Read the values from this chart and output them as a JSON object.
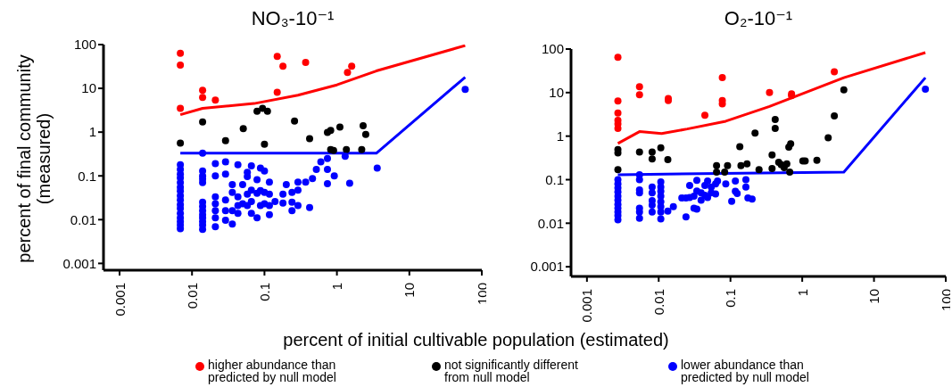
{
  "chart_data": [
    {
      "type": "scatter",
      "title": "NO₃-10⁻¹",
      "xlabel": "percent of initial cultivable population (estimated)",
      "ylabel": "percent  of final community (measured)",
      "log": "xy",
      "legend": "bottom",
      "xlim": [
        0.0006,
        100
      ],
      "ylim": [
        0.0007,
        100
      ],
      "xticks": [
        0.001,
        0.01,
        0.1,
        1,
        10,
        100
      ],
      "yticks": [
        0.001,
        0.01,
        0.1,
        1,
        10,
        100
      ],
      "series": [
        {
          "type": "line",
          "color": "#ff0000",
          "line_style": "solid",
          "x": [
            0.0069,
            0.014,
            0.072,
            0.29,
            1.0,
            3.5,
            59
          ],
          "values": [
            2.5,
            3.5,
            4.5,
            7,
            12,
            25,
            95
          ]
        },
        {
          "type": "line",
          "color": "#0000ff",
          "line_style": "solid",
          "x": [
            0.0069,
            3.5,
            59
          ],
          "values": [
            0.33,
            0.33,
            18
          ]
        },
        {
          "name": "higher abundance than predicted by null model",
          "marker": "circle",
          "color": "#ff0000",
          "x": [
            0.0069,
            0.0069,
            0.0069,
            0.014,
            0.014,
            0.021,
            0.15,
            0.18,
            0.15,
            0.37,
            1.4,
            1.6
          ],
          "values": [
            63,
            34,
            3.5,
            9,
            6.2,
            5.4,
            54,
            32,
            8.1,
            39,
            23,
            32
          ]
        },
        {
          "name": "not significantly different from null model",
          "marker": "circle",
          "color": "#000000",
          "x": [
            0.079,
            0.094,
            0.11,
            0.014,
            0.051,
            0.26,
            0.0069,
            0.029,
            0.1,
            0.42,
            0.74,
            0.82,
            1.1,
            2.3,
            2.5,
            0.82,
            0.9,
            1.35,
            2.2
          ],
          "values": [
            3.0,
            3.5,
            3.0,
            1.7,
            1.2,
            1.8,
            0.56,
            0.64,
            0.53,
            0.71,
            0.98,
            1.1,
            1.3,
            1.4,
            0.89,
            0.4,
            0.38,
            0.4,
            0.4
          ]
        },
        {
          "name": "lower abundance than predicted by null model",
          "marker": "circle",
          "color": "#0000ff",
          "x": [
            0.0069,
            0.0069,
            0.0069,
            0.0069,
            0.0069,
            0.0069,
            0.0069,
            0.0069,
            0.0069,
            0.0069,
            0.0069,
            0.0069,
            0.0069,
            0.0069,
            0.0069,
            0.0069,
            0.014,
            0.014,
            0.014,
            0.014,
            0.014,
            0.014,
            0.014,
            0.014,
            0.014,
            0.014,
            0.014,
            0.014,
            0.014,
            0.021,
            0.021,
            0.021,
            0.021,
            0.021,
            0.021,
            0.021,
            0.029,
            0.029,
            0.029,
            0.029,
            0.029,
            0.036,
            0.036,
            0.036,
            0.036,
            0.043,
            0.043,
            0.043,
            0.043,
            0.05,
            0.05,
            0.058,
            0.058,
            0.058,
            0.058,
            0.066,
            0.066,
            0.066,
            0.066,
            0.079,
            0.079,
            0.079,
            0.088,
            0.088,
            0.088,
            0.1,
            0.1,
            0.1,
            0.117,
            0.117,
            0.117,
            0.117,
            0.14,
            0.18,
            0.18,
            0.2,
            0.24,
            0.24,
            0.24,
            0.29,
            0.29,
            0.29,
            0.37,
            0.42,
            0.46,
            0.52,
            0.6,
            0.74,
            0.74,
            0.74,
            0.92,
            1.3,
            1.5,
            3.6,
            59
          ],
          "values": [
            0.18,
            0.14,
            0.11,
            0.09,
            0.07,
            0.055,
            0.045,
            0.035,
            0.028,
            0.022,
            0.018,
            0.014,
            0.011,
            0.009,
            0.0075,
            0.0062,
            0.33,
            0.13,
            0.1,
            0.085,
            0.07,
            0.025,
            0.02,
            0.016,
            0.013,
            0.011,
            0.009,
            0.0075,
            0.006,
            0.19,
            0.1,
            0.033,
            0.023,
            0.016,
            0.011,
            0.0069,
            0.21,
            0.11,
            0.028,
            0.016,
            0.0097,
            0.063,
            0.042,
            0.016,
            0.0079,
            0.18,
            0.033,
            0.021,
            0.014,
            0.063,
            0.023,
            0.12,
            0.097,
            0.038,
            0.021,
            0.17,
            0.047,
            0.026,
            0.014,
            0.082,
            0.04,
            0.011,
            0.15,
            0.046,
            0.021,
            0.13,
            0.042,
            0.023,
            0.072,
            0.038,
            0.021,
            0.013,
            0.026,
            0.038,
            0.024,
            0.063,
            0.042,
            0.025,
            0.016,
            0.072,
            0.047,
            0.021,
            0.072,
            0.019,
            0.087,
            0.14,
            0.21,
            0.25,
            0.14,
            0.066,
            0.1,
            0.28,
            0.068,
            0.15,
            9.5
          ]
        }
      ]
    },
    {
      "type": "scatter",
      "title": "O₂-10⁻¹",
      "log": "xy",
      "xlim": [
        0.0006,
        100
      ],
      "ylim": [
        0.0006,
        100
      ],
      "xticks": [
        0.001,
        0.01,
        0.1,
        1,
        10,
        100
      ],
      "yticks": [
        0.001,
        0.01,
        0.1,
        1,
        10,
        100
      ],
      "series": [
        {
          "type": "line",
          "color": "#ff0000",
          "line_style": "solid",
          "x": [
            0.0027,
            0.0054,
            0.011,
            0.025,
            0.086,
            0.35,
            3.8,
            52
          ],
          "values": [
            0.68,
            1.27,
            1.15,
            1.46,
            2.2,
            4.8,
            22,
            83
          ]
        },
        {
          "type": "line",
          "color": "#0000ff",
          "line_style": "solid",
          "x": [
            0.0027,
            3.8,
            52
          ],
          "values": [
            0.13,
            0.15,
            22
          ]
        },
        {
          "marker": "circle",
          "color": "#ff0000",
          "x": [
            0.0027,
            0.0027,
            0.0027,
            0.0027,
            0.0027,
            0.0027,
            0.0054,
            0.0054,
            0.0136,
            0.0136,
            0.044,
            0.077,
            0.077,
            0.077,
            0.35,
            0.71,
            0.71,
            2.8
          ],
          "values": [
            65,
            6.4,
            3.4,
            2.3,
            1.9,
            1.5,
            13.6,
            8.9,
            7.3,
            6.6,
            3.0,
            22,
            6.6,
            5.5,
            10,
            9.3,
            8.5,
            30
          ]
        },
        {
          "marker": "circle",
          "color": "#000000",
          "x": [
            0.0027,
            0.0027,
            0.0027,
            0.0054,
            0.0081,
            0.0081,
            0.0107,
            0.0134,
            0.064,
            0.064,
            0.083,
            0.091,
            0.135,
            0.14,
            0.17,
            0.22,
            0.25,
            0.38,
            0.38,
            0.42,
            0.42,
            0.47,
            0.51,
            0.56,
            0.61,
            0.65,
            0.69,
            0.67,
            1.02,
            1.1,
            1.6,
            2.3,
            2.8,
            3.8
          ],
          "values": [
            0.49,
            0.41,
            0.17,
            0.43,
            0.43,
            0.3,
            0.54,
            0.29,
            0.21,
            0.15,
            0.15,
            0.21,
            0.57,
            0.21,
            0.23,
            1.17,
            0.17,
            0.37,
            0.18,
            2.4,
            1.5,
            0.25,
            0.22,
            0.19,
            0.23,
            0.56,
            0.67,
            0.15,
            0.27,
            0.27,
            0.28,
            0.92,
            2.9,
            11.6
          ]
        },
        {
          "marker": "circle",
          "color": "#0000ff",
          "x": [
            0.0027,
            0.0027,
            0.0027,
            0.0027,
            0.0027,
            0.0027,
            0.0027,
            0.0027,
            0.0027,
            0.0027,
            0.0027,
            0.0054,
            0.0054,
            0.0054,
            0.0054,
            0.0054,
            0.0054,
            0.0054,
            0.0081,
            0.0081,
            0.0081,
            0.0081,
            0.0081,
            0.0107,
            0.0107,
            0.0107,
            0.0107,
            0.0107,
            0.0107,
            0.0107,
            0.0107,
            0.0134,
            0.016,
            0.021,
            0.024,
            0.024,
            0.027,
            0.027,
            0.031,
            0.031,
            0.034,
            0.034,
            0.034,
            0.039,
            0.039,
            0.044,
            0.044,
            0.048,
            0.048,
            0.054,
            0.054,
            0.062,
            0.062,
            0.066,
            0.086,
            0.104,
            0.117,
            0.117,
            0.124,
            0.164,
            0.164,
            0.175,
            0.2,
            52
          ],
          "values": [
            0.1,
            0.08,
            0.065,
            0.052,
            0.042,
            0.034,
            0.027,
            0.022,
            0.018,
            0.015,
            0.012,
            0.13,
            0.1,
            0.058,
            0.05,
            0.022,
            0.018,
            0.013,
            0.068,
            0.05,
            0.033,
            0.026,
            0.018,
            0.089,
            0.068,
            0.054,
            0.042,
            0.031,
            0.024,
            0.018,
            0.0125,
            0.019,
            0.024,
            0.038,
            0.038,
            0.014,
            0.074,
            0.039,
            0.042,
            0.022,
            0.096,
            0.055,
            0.021,
            0.05,
            0.034,
            0.074,
            0.044,
            0.093,
            0.039,
            0.068,
            0.05,
            0.08,
            0.047,
            0.093,
            0.08,
            0.032,
            0.093,
            0.054,
            0.048,
            0.1,
            0.068,
            0.038,
            0.036,
            12
          ]
        }
      ]
    }
  ]
}
